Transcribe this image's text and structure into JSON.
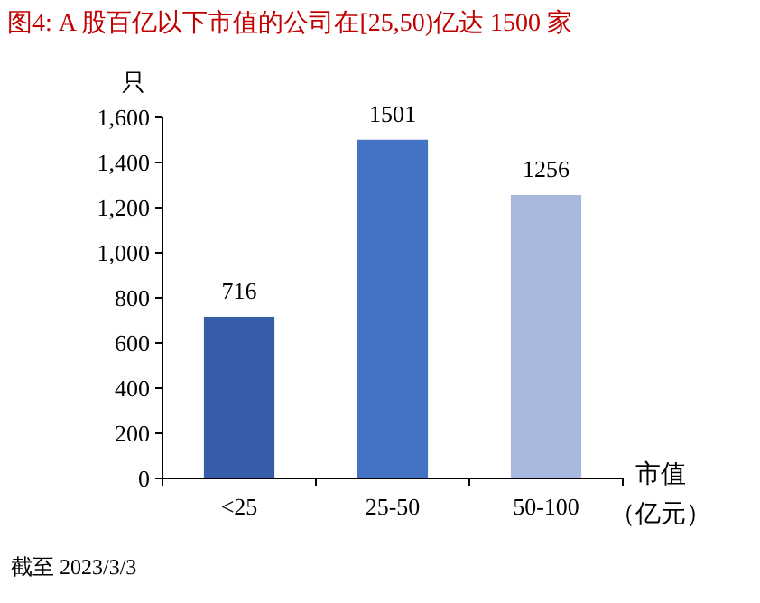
{
  "chart_data": {
    "type": "bar",
    "title": "图4:  A 股百亿以下市值的公司在[25,50)亿达 1500 家",
    "ylabel": "只",
    "xlabel": "市值（亿元）",
    "annotations": [
      "截至 2023/3/3"
    ],
    "categories": [
      "<25",
      "25-50",
      "50-100"
    ],
    "values": [
      716,
      1501,
      1256
    ],
    "colors": [
      "#365ea8",
      "#4472c4",
      "#a9b8df"
    ],
    "ylim": [
      0,
      1600
    ],
    "yticks": [
      0,
      200,
      400,
      600,
      800,
      {
        "value": 1000,
        "label": "1,000"
      },
      {
        "value": 1200,
        "label": "1,200"
      },
      {
        "value": 1400,
        "label": "1,400"
      },
      {
        "value": 1600,
        "label": "1,600"
      }
    ],
    "data_labels": true
  }
}
